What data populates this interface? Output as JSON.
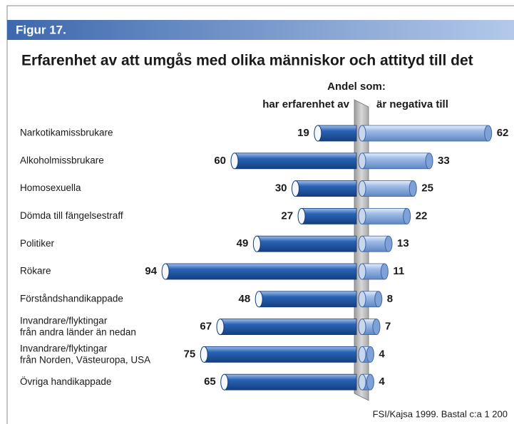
{
  "chart_data": {
    "type": "bar",
    "figure_label": "Figur 17.",
    "title": "Erfarenhet av att umgås med olika människor och attityd till det",
    "group_heading": "Andel som:",
    "categories": [
      "Narkotikamissbrukare",
      "Alkoholmissbrukare",
      "Homosexuella",
      "Dömda till fängelsestraff",
      "Politiker",
      "Rökare",
      "Förståndshandikappade",
      "Invandrare/flyktingar\nfrån andra länder än nedan",
      "Invandrare/flyktingar\nfrån Norden, Västeuropa, USA",
      "Övriga handikappade"
    ],
    "series": [
      {
        "name": "har erfarenhet av",
        "color": "#1f57a8",
        "values": [
          19,
          60,
          30,
          27,
          49,
          94,
          48,
          67,
          75,
          65
        ]
      },
      {
        "name": "är negativa till",
        "color": "#86a9dc",
        "values": [
          62,
          33,
          25,
          22,
          13,
          11,
          8,
          7,
          4,
          4
        ]
      }
    ],
    "source": "FSI/Kajsa 1999. Bastal c:a 1 200"
  }
}
